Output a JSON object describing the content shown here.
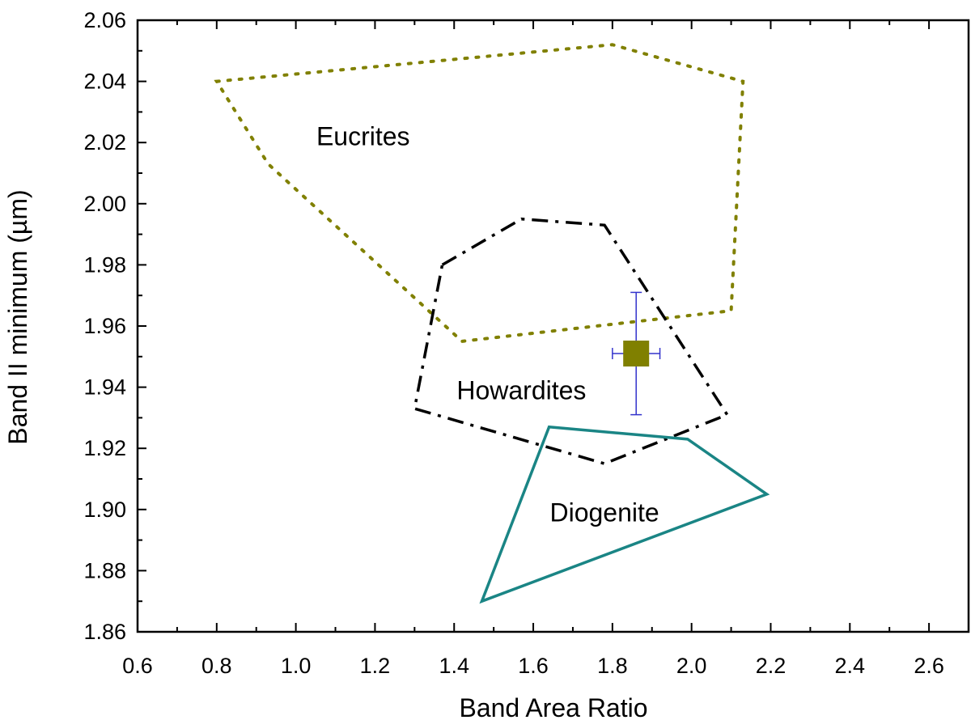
{
  "chart_data": {
    "type": "scatter",
    "title": "",
    "xlabel": "Band Area Ratio",
    "ylabel": "Band II minimum (µm)",
    "xlim": [
      0.6,
      2.7
    ],
    "ylim": [
      1.86,
      2.06
    ],
    "grid": false,
    "x_ticks": [
      "0.6",
      "0.8",
      "1.0",
      "1.2",
      "1.4",
      "1.6",
      "1.8",
      "2.0",
      "2.2",
      "2.4",
      "2.6"
    ],
    "y_ticks": [
      "1.86",
      "1.88",
      "1.90",
      "1.92",
      "1.94",
      "1.96",
      "1.98",
      "2.00",
      "2.02",
      "2.04",
      "2.06"
    ],
    "regions": [
      {
        "label": "Eucrites",
        "style": "dotted",
        "color": "#808000",
        "label_at": [
          1.17,
          2.022
        ],
        "points": [
          [
            0.8,
            2.04
          ],
          [
            1.8,
            2.052
          ],
          [
            2.13,
            2.04
          ],
          [
            2.1,
            1.965
          ],
          [
            1.42,
            1.955
          ],
          [
            0.93,
            2.013
          ]
        ]
      },
      {
        "label": "Howardites",
        "style": "dashdot",
        "color": "#000000",
        "label_at": [
          1.57,
          1.939
        ],
        "points": [
          [
            1.37,
            1.98
          ],
          [
            1.57,
            1.995
          ],
          [
            1.78,
            1.993
          ],
          [
            2.09,
            1.931
          ],
          [
            1.78,
            1.915
          ],
          [
            1.3,
            1.933
          ]
        ]
      },
      {
        "label": "Diogenite",
        "style": "solid",
        "color": "#1a8585",
        "label_at": [
          1.78,
          1.899
        ],
        "points": [
          [
            1.64,
            1.927
          ],
          [
            1.99,
            1.923
          ],
          [
            2.19,
            1.905
          ],
          [
            1.47,
            1.87
          ]
        ]
      }
    ],
    "point": {
      "x": 1.86,
      "y": 1.951,
      "x_err": [
        1.8,
        1.92
      ],
      "y_err": [
        1.931,
        1.971
      ],
      "marker_color": "#808000",
      "errorbar_color": "#3333cc"
    }
  }
}
